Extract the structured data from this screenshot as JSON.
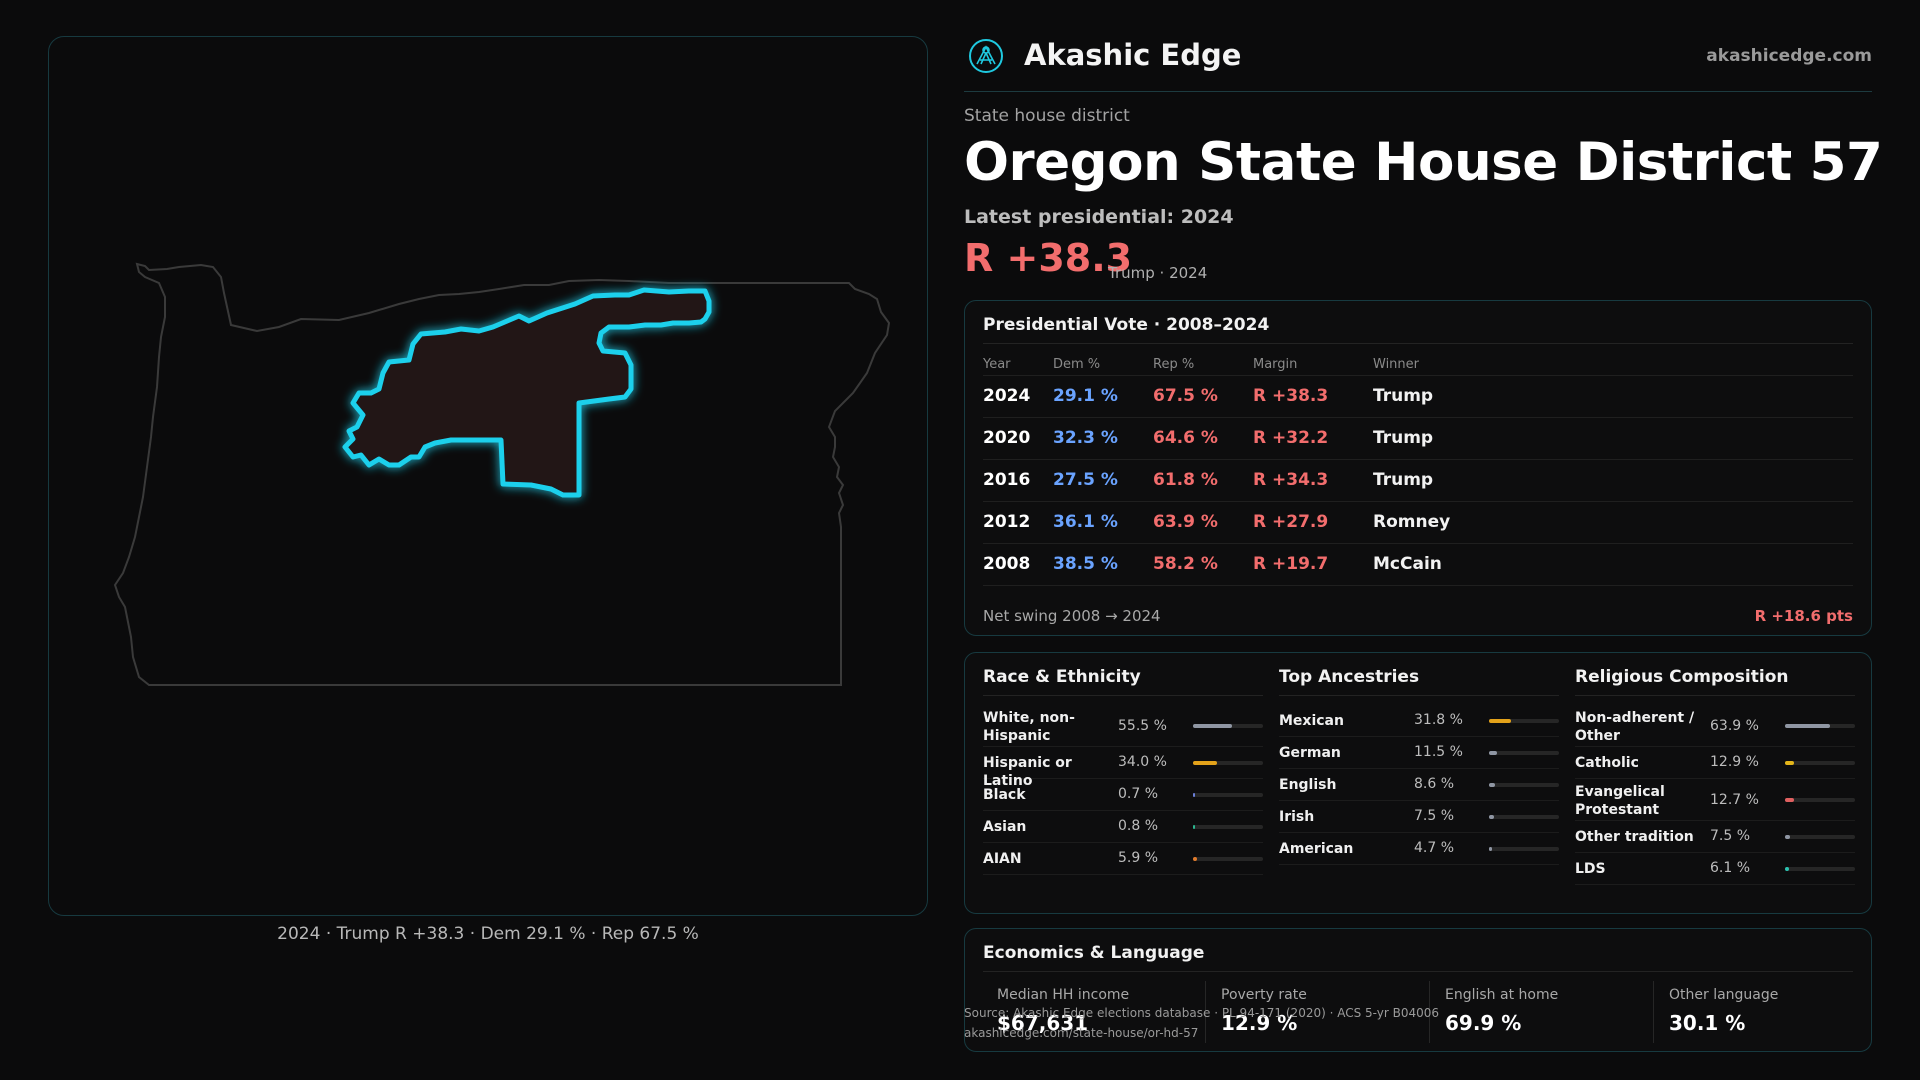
{
  "brand": {
    "name": "Akashic Edge",
    "url": "akashicedge.com",
    "logo_icon": "akashic-logo-icon"
  },
  "header": {
    "kicker": "State house district",
    "title": "Oregon State House District 57",
    "latest": "Latest presidential: 2024",
    "margin": "R +38.3",
    "margin_sub": "Trump · 2024"
  },
  "map": {
    "caption": "2024 · Trump R +38.3 · Dem 29.1 % · Rep 67.5 %",
    "district_color": "#19c9e6",
    "state_outline_color": "#3a3a3a"
  },
  "vote_table": {
    "title": "Presidential Vote · 2008–2024",
    "columns": [
      "Year",
      "Dem %",
      "Rep %",
      "Margin",
      "Winner"
    ],
    "rows": [
      {
        "year": "2024",
        "dem": "29.1 %",
        "rep": "67.5 %",
        "margin": "R +38.3",
        "winner": "Trump"
      },
      {
        "year": "2020",
        "dem": "32.3 %",
        "rep": "64.6 %",
        "margin": "R +32.2",
        "winner": "Trump"
      },
      {
        "year": "2016",
        "dem": "27.5 %",
        "rep": "61.8 %",
        "margin": "R +34.3",
        "winner": "Trump"
      },
      {
        "year": "2012",
        "dem": "36.1 %",
        "rep": "63.9 %",
        "margin": "R +27.9",
        "winner": "Romney"
      },
      {
        "year": "2008",
        "dem": "38.5 %",
        "rep": "58.2 %",
        "margin": "R +19.7",
        "winner": "McCain"
      }
    ],
    "net_swing_label": "Net swing 2008 → 2024",
    "net_swing_value": "R +18.6 pts"
  },
  "race": {
    "title": "Race & Ethnicity",
    "rows": [
      {
        "label": "White, non-Hispanic",
        "value": "55.5 %",
        "share": 0.555,
        "color": "#8f96a3"
      },
      {
        "label": "Hispanic or Latino",
        "value": "34.0 %",
        "share": 0.34,
        "color": "#e3a21a"
      },
      {
        "label": "Black",
        "value": "0.7 %",
        "share": 0.007,
        "color": "#6a7fd9"
      },
      {
        "label": "Asian",
        "value": "0.8 %",
        "share": 0.008,
        "color": "#2bb58f"
      },
      {
        "label": "AIAN",
        "value": "5.9 %",
        "share": 0.059,
        "color": "#e07b2c"
      }
    ]
  },
  "ancestries": {
    "title": "Top Ancestries",
    "rows": [
      {
        "label": "Mexican",
        "value": "31.8 %",
        "share": 0.318,
        "color": "#e3a21a"
      },
      {
        "label": "German",
        "value": "11.5 %",
        "share": 0.115,
        "color": "#8f96a3"
      },
      {
        "label": "English",
        "value": "8.6 %",
        "share": 0.086,
        "color": "#8f96a3"
      },
      {
        "label": "Irish",
        "value": "7.5 %",
        "share": 0.075,
        "color": "#8f96a3"
      },
      {
        "label": "American",
        "value": "4.7 %",
        "share": 0.047,
        "color": "#8f96a3"
      }
    ]
  },
  "religion": {
    "title": "Religious Composition",
    "rows": [
      {
        "label": "Non-adherent / Other",
        "value": "63.9 %",
        "share": 0.639,
        "color": "#8f96a3"
      },
      {
        "label": "Catholic",
        "value": "12.9 %",
        "share": 0.129,
        "color": "#e3b51a"
      },
      {
        "label": "Evangelical Protestant",
        "value": "12.7 %",
        "share": 0.127,
        "color": "#e06060"
      },
      {
        "label": "Other tradition",
        "value": "7.5 %",
        "share": 0.075,
        "color": "#8f96a3"
      },
      {
        "label": "LDS",
        "value": "6.1 %",
        "share": 0.061,
        "color": "#2bc2b0"
      }
    ]
  },
  "economics": {
    "title": "Economics & Language",
    "cells": [
      {
        "label": "Median HH income",
        "value": "$67,631"
      },
      {
        "label": "Poverty rate",
        "value": "12.9 %"
      },
      {
        "label": "English at home",
        "value": "69.9 %"
      },
      {
        "label": "Other language",
        "value": "30.1 %"
      }
    ]
  },
  "footer": {
    "source": "Source: Akashic Edge elections database · PL 94-171 (2020) · ACS 5-yr B04006",
    "permalink": "akashicedge.com/state-house/or-hd-57"
  }
}
